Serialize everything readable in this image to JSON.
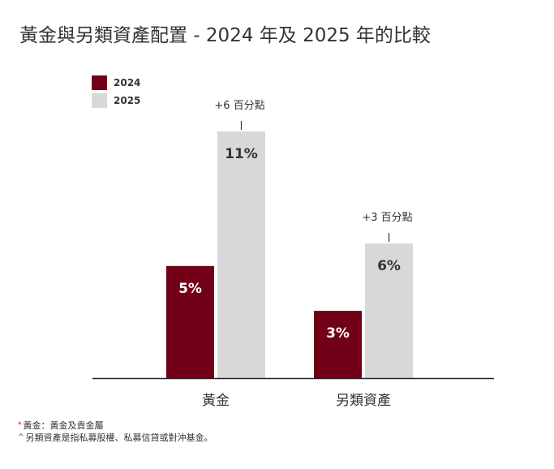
{
  "chart_data": {
    "type": "bar",
    "title": "黃金與另類資產配置 - 2024 年及 2025 年的比較",
    "categories": [
      "黃金",
      "另類資產"
    ],
    "series": [
      {
        "name": "2024",
        "values": [
          5,
          3
        ],
        "labels": [
          "5%",
          "3%"
        ],
        "color": "#720017"
      },
      {
        "name": "2025",
        "values": [
          11,
          6
        ],
        "labels": [
          "11%",
          "6%"
        ],
        "color": "#d8d8d8"
      }
    ],
    "annotations": [
      "+6 百分點",
      "+3 百分點"
    ],
    "ylim": [
      0,
      11
    ],
    "grid": false,
    "legend": "top-left"
  },
  "footnotes": [
    {
      "mark": "*",
      "text": "黃金：黃金及貴金屬"
    },
    {
      "mark": "^",
      "text": "另類資產是指私募股權、私募信貸或對沖基金。"
    }
  ]
}
